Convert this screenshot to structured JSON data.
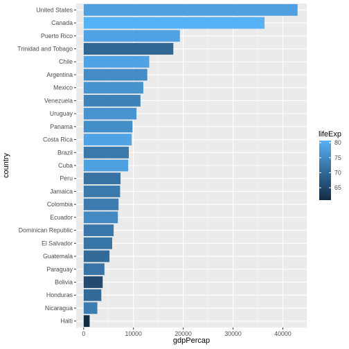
{
  "chart_data": {
    "type": "bar",
    "orientation": "horizontal",
    "xlabel": "gdpPercap",
    "ylabel": "country",
    "xlim": [
      -1500,
      44800
    ],
    "xticks": [
      0,
      10000,
      20000,
      30000,
      40000
    ],
    "xtick_labels": [
      "0",
      "10000",
      "20000",
      "30000",
      "40000"
    ],
    "grid": true,
    "legend": {
      "title": "lifeExp",
      "placement": "right",
      "ticks": [
        65,
        70,
        75,
        80
      ],
      "range": [
        60.9,
        80.7
      ],
      "color_low": "#132B43",
      "color_high": "#56B1F7"
    },
    "categories": [
      "United States",
      "Canada",
      "Puerto Rico",
      "Trinidad and Tobago",
      "Chile",
      "Argentina",
      "Mexico",
      "Venezuela",
      "Uruguay",
      "Panama",
      "Costa Rica",
      "Brazil",
      "Cuba",
      "Peru",
      "Jamaica",
      "Colombia",
      "Ecuador",
      "Dominican Republic",
      "El Salvador",
      "Guatemala",
      "Paraguay",
      "Bolivia",
      "Honduras",
      "Nicaragua",
      "Haiti"
    ],
    "values": [
      42952,
      36319,
      19329,
      18009,
      13172,
      12779,
      11978,
      11416,
      10611,
      9809,
      9645,
      9066,
      8948,
      7409,
      7321,
      7007,
      6873,
      6025,
      5728,
      5186,
      4173,
      3822,
      3548,
      2749,
      1202
    ],
    "color_values": [
      78.2,
      80.7,
      78.7,
      69.8,
      78.6,
      75.3,
      76.2,
      73.7,
      76.4,
      75.5,
      78.8,
      72.4,
      78.3,
      71.4,
      72.6,
      72.9,
      75.0,
      72.2,
      71.9,
      70.3,
      71.8,
      65.6,
      70.2,
      72.9,
      60.9
    ]
  }
}
